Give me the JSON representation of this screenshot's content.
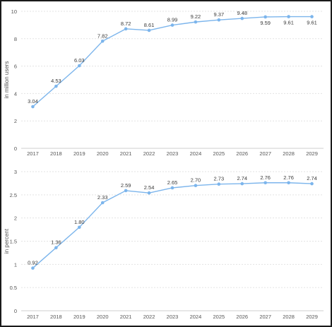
{
  "colors": {
    "series": "#7cb5ec",
    "marker": "#7cb5ec"
  },
  "chart_data": [
    {
      "type": "line",
      "title": "",
      "xlabel": "",
      "ylabel": "in million users",
      "ylim": [
        0,
        10
      ],
      "yticks": [
        0,
        2,
        4,
        6,
        8,
        10
      ],
      "grid": true,
      "x": [
        "2017",
        "2018",
        "2019",
        "2020",
        "2021",
        "2022",
        "2023",
        "2024",
        "2025",
        "2026",
        "2027",
        "2028",
        "2029"
      ],
      "series": [
        {
          "values": [
            3.04,
            4.53,
            6.03,
            7.82,
            8.72,
            8.61,
            8.99,
            9.22,
            9.37,
            9.48,
            9.59,
            9.61,
            9.61
          ],
          "labels": [
            "3.04",
            "4.53",
            "6.03",
            "7.82",
            "8.72",
            "8.61",
            "8.99",
            "9.22",
            "9.37",
            "9.48",
            "9.59",
            "9.61",
            "9.61"
          ]
        }
      ]
    },
    {
      "type": "line",
      "title": "",
      "xlabel": "",
      "ylabel": "in percent",
      "ylim": [
        0,
        3
      ],
      "yticks": [
        "0",
        "0.5",
        "1",
        "1.5",
        "2",
        "2.5",
        "3"
      ],
      "grid": true,
      "x": [
        "2017",
        "2018",
        "2019",
        "2020",
        "2021",
        "2022",
        "2023",
        "2024",
        "2025",
        "2026",
        "2027",
        "2028",
        "2029"
      ],
      "series": [
        {
          "values": [
            0.92,
            1.36,
            1.8,
            2.33,
            2.59,
            2.54,
            2.65,
            2.7,
            2.73,
            2.74,
            2.76,
            2.76,
            2.74
          ],
          "labels": [
            "0.92",
            "1.36",
            "1.80",
            "2.33",
            "2.59",
            "2.54",
            "2.65",
            "2.70",
            "2.73",
            "2.74",
            "2.76",
            "2.76",
            "2.74"
          ]
        }
      ]
    }
  ]
}
